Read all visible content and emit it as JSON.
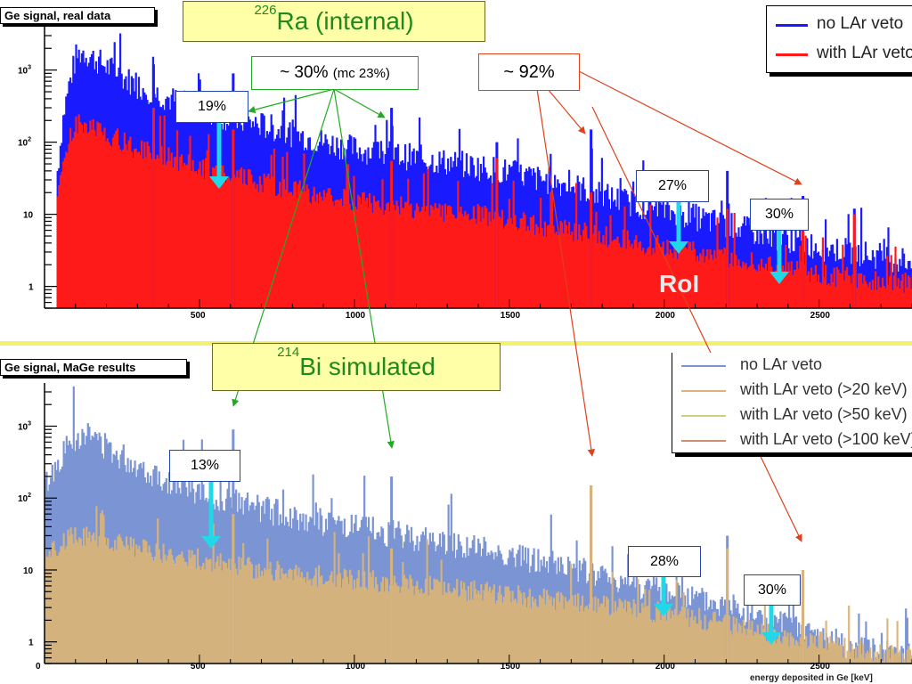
{
  "top_panel": {
    "header": "Ge signal, real data",
    "isotope_box": {
      "mass": "226",
      "text": "Ra  (internal)"
    },
    "legend": [
      {
        "label": "no LAr veto",
        "color": "#1a1aff"
      },
      {
        "label": "with LAr veto",
        "color": "#ff1a1a"
      }
    ],
    "pct_green": {
      "main": "~ 30%",
      "sub": "(mc 23%)"
    },
    "pct_red": "~ 92%",
    "arrow_labels": [
      "19%",
      "27%",
      "30%"
    ],
    "roi_label": "RoI"
  },
  "bottom_panel": {
    "header": "Ge signal, MaGe results",
    "isotope_box": {
      "mass": "214",
      "text": "Bi  simulated"
    },
    "legend": [
      {
        "label": "no LAr veto",
        "color": "#7b94d4"
      },
      {
        "label": "with LAr veto (>20 keV)",
        "color": "#d9b47a"
      },
      {
        "label": "with LAr veto (>50 keV)",
        "color": "#cfcf7a"
      },
      {
        "label": "with LAr veto (>100 keV)",
        "color": "#c89070"
      }
    ],
    "arrow_labels": [
      "13%",
      "28%",
      "30%"
    ],
    "xlabel": "energy deposited in Ge [keV]"
  },
  "colors": {
    "annot_green": "#22aa22",
    "annot_red": "#e0401a",
    "cyan_arrow": "#22d8e8",
    "roi": "#e8e8e8"
  },
  "chart_data": [
    {
      "type": "area",
      "title": "Ge signal, real data",
      "xlabel": "",
      "ylabel": "",
      "xlim": [
        0,
        2800
      ],
      "ylim": [
        0.5,
        3000
      ],
      "yscale": "log",
      "xticks": [
        500,
        1000,
        1500,
        2000,
        2500
      ],
      "yticks": [
        "1",
        "10",
        "10^2",
        "10^3"
      ],
      "series": [
        {
          "name": "no LAr veto",
          "color": "#1a1aff",
          "x": [
            40,
            60,
            80,
            100,
            120,
            150,
            200,
            250,
            300,
            400,
            500,
            600,
            700,
            800,
            900,
            1000,
            1200,
            1400,
            1500,
            1600,
            1700,
            1800,
            1900,
            2000,
            2100,
            2200,
            2300,
            2400,
            2500,
            2600,
            2700,
            2800
          ],
          "y": [
            40,
            250,
            700,
            1500,
            1800,
            1500,
            1100,
            800,
            600,
            400,
            280,
            210,
            170,
            130,
            100,
            80,
            60,
            45,
            38,
            30,
            25,
            18,
            14,
            11,
            9,
            7,
            5.5,
            4.5,
            3.5,
            3,
            2.6,
            2.2
          ]
        },
        {
          "name": "with LAr veto",
          "color": "#ff1a1a",
          "x": [
            40,
            60,
            80,
            100,
            120,
            150,
            200,
            250,
            300,
            400,
            500,
            600,
            700,
            800,
            900,
            1000,
            1200,
            1400,
            1500,
            1600,
            1700,
            1800,
            1900,
            2000,
            2100,
            2200,
            2300,
            2400,
            2500,
            2600,
            2700,
            2800
          ],
          "y": [
            15,
            60,
            110,
            170,
            180,
            160,
            130,
            100,
            80,
            60,
            45,
            35,
            28,
            22,
            18,
            15,
            12,
            10,
            8.5,
            7,
            6,
            5,
            4,
            3.5,
            3,
            2.5,
            2,
            1.7,
            1.5,
            1.3,
            1.2,
            1.1
          ]
        }
      ],
      "peaks": [
        {
          "x": 352,
          "no_veto": 1200,
          "veto": 300
        },
        {
          "x": 609,
          "no_veto": 900,
          "veto": 150
        },
        {
          "x": 1120,
          "no_veto": 300,
          "veto": 55
        },
        {
          "x": 1764,
          "no_veto": 150,
          "veto": 20
        },
        {
          "x": 1460,
          "no_veto": 100,
          "veto": 60
        },
        {
          "x": 2204,
          "no_veto": 40,
          "veto": 12
        },
        {
          "x": 2448,
          "no_veto": 18,
          "veto": 8
        },
        {
          "x": 2614,
          "no_veto": 12,
          "veto": 10
        }
      ]
    },
    {
      "type": "area",
      "title": "Ge signal, MaGe results",
      "xlabel": "energy deposited in Ge [keV]",
      "ylabel": "",
      "xlim": [
        0,
        2800
      ],
      "ylim": [
        0.5,
        3000
      ],
      "yscale": "log",
      "xticks": [
        0,
        500,
        1000,
        1500,
        2000,
        2500
      ],
      "yticks": [
        "1",
        "10",
        "10^2",
        "10^3"
      ],
      "series": [
        {
          "name": "no LAr veto",
          "color": "#7b94d4",
          "x": [
            0,
            40,
            80,
            120,
            160,
            200,
            300,
            400,
            500,
            600,
            700,
            800,
            900,
            1000,
            1200,
            1400,
            1500,
            1600,
            1800,
            2000,
            2200,
            2400,
            2500,
            2600,
            2800
          ],
          "y": [
            150,
            300,
            600,
            800,
            700,
            500,
            280,
            170,
            120,
            90,
            70,
            55,
            45,
            38,
            28,
            20,
            16,
            13,
            8,
            5,
            3,
            1.6,
            1.2,
            0.8,
            0.6
          ]
        },
        {
          "name": "with LAr veto (>20 keV)",
          "color": "#d9b47a",
          "x": [
            0,
            40,
            80,
            120,
            160,
            200,
            300,
            400,
            500,
            600,
            700,
            800,
            900,
            1000,
            1200,
            1400,
            1500,
            1600,
            1800,
            2000,
            2200,
            2400,
            2500,
            2600,
            2800
          ],
          "y": [
            14,
            22,
            28,
            30,
            28,
            25,
            20,
            16,
            14,
            12,
            10,
            9,
            8,
            7.5,
            6,
            5,
            4.5,
            4,
            3.2,
            2.5,
            1.8,
            1.2,
            1,
            0.8,
            0.6
          ]
        }
      ],
      "peaks": [
        {
          "x": 609,
          "no_veto": 900,
          "veto": 60
        },
        {
          "x": 1120,
          "no_veto": 200,
          "veto": 20
        },
        {
          "x": 1764,
          "no_veto": 150,
          "veto": 150
        },
        {
          "x": 2204,
          "no_veto": 30,
          "veto": 20
        },
        {
          "x": 2448,
          "no_veto": 10,
          "veto": 10
        }
      ]
    }
  ]
}
